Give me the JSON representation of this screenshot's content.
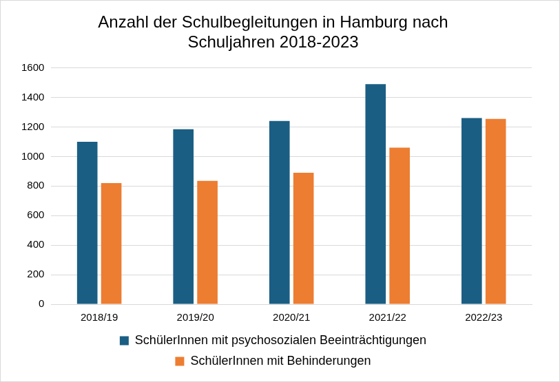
{
  "chart_data": {
    "type": "bar",
    "title": [
      "Anzahl der Schulbegleitungen in Hamburg nach",
      "Schuljahren 2018-2023"
    ],
    "categories": [
      "2018/19",
      "2019/20",
      "2020/21",
      "2021/22",
      "2022/23"
    ],
    "series": [
      {
        "name": "SchülerInnen mit psychosozialen Beeinträchtigungen",
        "color": "#1b5e83",
        "values": [
          1100,
          1185,
          1240,
          1490,
          1260
        ]
      },
      {
        "name": "SchülerInnen mit Behinderungen",
        "color": "#ed7d31",
        "values": [
          820,
          835,
          890,
          1060,
          1255
        ]
      }
    ],
    "ylim": [
      0,
      1600
    ],
    "yticks": [
      0,
      200,
      400,
      600,
      800,
      1000,
      1200,
      1400,
      1600
    ],
    "grid": true,
    "legend": "bottom"
  }
}
